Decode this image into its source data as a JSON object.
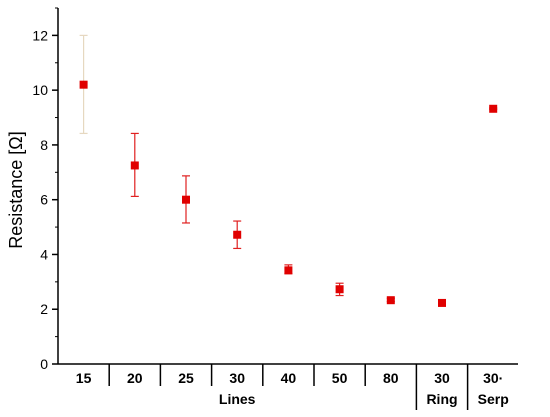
{
  "chart_data": {
    "type": "scatter",
    "title": "",
    "xlabel": "",
    "ylabel": "Resistance [Ω]",
    "ylim": [
      0,
      13
    ],
    "yticks": [
      0,
      2,
      4,
      6,
      8,
      10,
      12
    ],
    "grid": false,
    "categories": [
      "15",
      "20",
      "25",
      "30",
      "40",
      "50",
      "80",
      "30",
      "30·"
    ],
    "groups": [
      {
        "label": "Lines",
        "start": 0,
        "end": 6
      },
      {
        "label": "Ring",
        "start": 7,
        "end": 7
      },
      {
        "label": "Serp",
        "start": 8,
        "end": 8
      }
    ],
    "series": [
      {
        "values": [
          10.2,
          7.25,
          6.0,
          4.72,
          3.42,
          2.73,
          2.33,
          2.23,
          9.32
        ],
        "error_low": [
          8.42,
          6.12,
          5.15,
          4.22,
          3.3,
          2.5,
          2.28,
          2.18,
          9.3
        ],
        "error_high": [
          12.0,
          8.42,
          6.87,
          5.22,
          3.62,
          2.95,
          2.4,
          2.3,
          9.35
        ],
        "marker": "square",
        "color": "#e00000",
        "error_colors": [
          "#e6d8c0",
          "#e02020",
          "#e02020",
          "#e02020",
          "#e02020",
          "#e02020",
          "#e02020",
          "#e02020",
          "#e02020"
        ]
      }
    ]
  }
}
